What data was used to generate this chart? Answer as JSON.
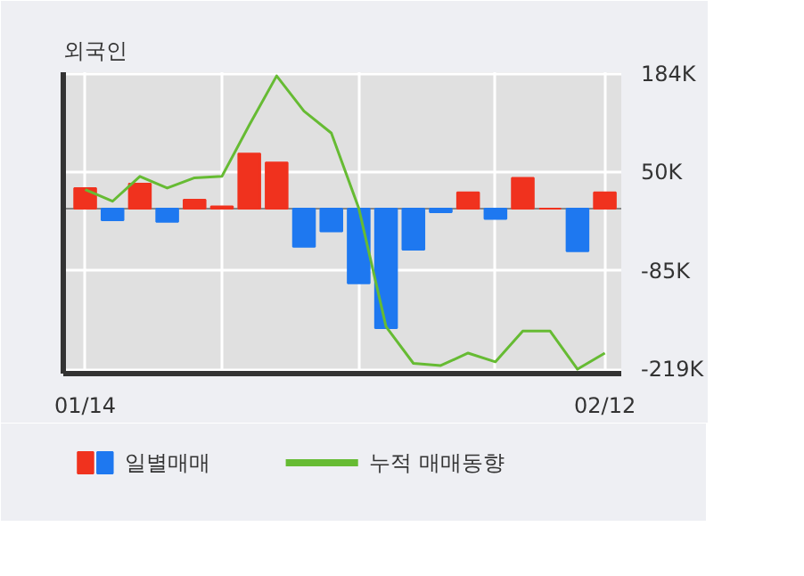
{
  "chart_data": {
    "type": "bar",
    "title": "외국인",
    "categories": [
      "01/14",
      null,
      null,
      null,
      null,
      null,
      null,
      null,
      null,
      null,
      null,
      null,
      null,
      null,
      null,
      null,
      null,
      null,
      null,
      "02/12"
    ],
    "series": [
      {
        "name": "일별매매",
        "colors": [
          "#f0321e",
          "#1e78f0",
          "#f0321e",
          "#1e78f0",
          "#f0321e",
          "#f0321e",
          "#f0321e",
          "#f0321e",
          "#1e78f0",
          "#1e78f0",
          "#1e78f0",
          "#1e78f0",
          "#1e78f0",
          "#1e78f0",
          "#f0321e",
          "#1e78f0",
          "#f0321e",
          "#f0321e",
          "#1e78f0",
          "#f0321e"
        ],
        "values": [
          28,
          -16,
          34,
          -18,
          12,
          3,
          75,
          63,
          -52,
          -31,
          -102,
          -163,
          -56,
          -5,
          22,
          -14,
          42,
          0,
          -58,
          22
        ]
      },
      {
        "name": "누적 매매동향",
        "type": "line",
        "color": "#66bb33",
        "values": [
          26,
          10,
          44,
          28,
          42,
          44,
          114,
          181,
          133,
          103,
          1,
          -161,
          -211,
          -214,
          -197,
          -209,
          -167,
          -167,
          -219,
          -197
        ]
      }
    ],
    "ylim": [
      -225,
      186
    ],
    "yticks": [
      {
        "value": 184,
        "label": "184K"
      },
      {
        "value": 50,
        "label": "50K"
      },
      {
        "value": -85,
        "label": "-85K"
      },
      {
        "value": -219,
        "label": "-219K"
      }
    ],
    "grid": true,
    "legend": "bottom"
  }
}
